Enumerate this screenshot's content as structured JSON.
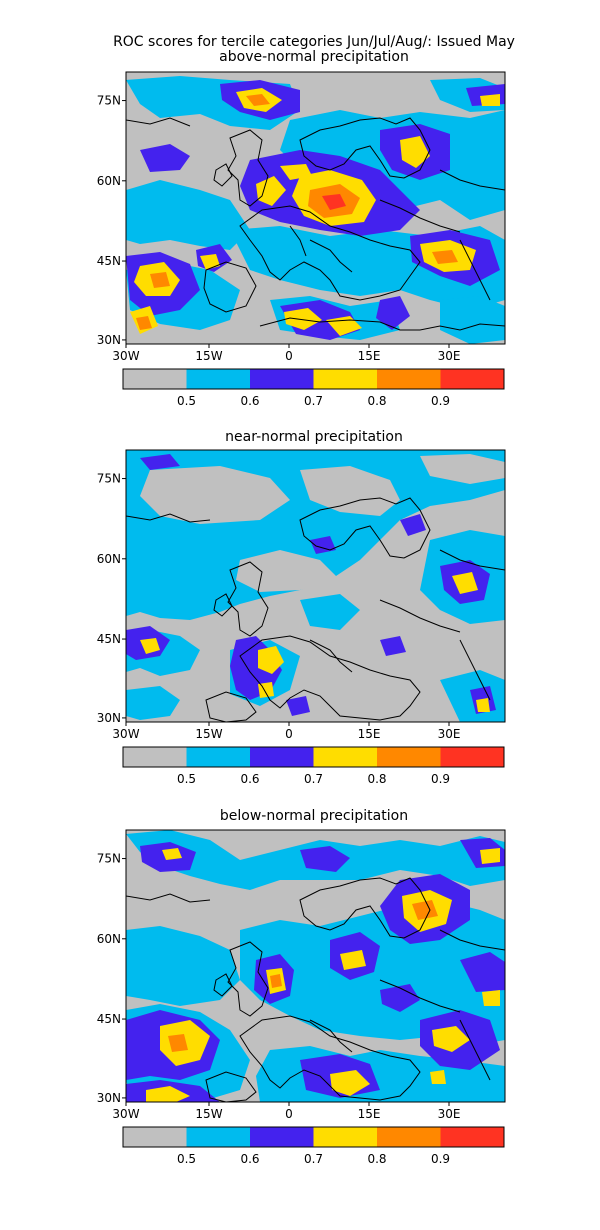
{
  "title_line1": "ROC scores for tercile categories Jun/Jul/Aug/: Issued May",
  "panels": [
    {
      "title": "above-normal precipitation"
    },
    {
      "title": "near-normal precipitation"
    },
    {
      "title": "below-normal precipitation"
    }
  ],
  "x_ticks": [
    "30W",
    "15W",
    "0",
    "15E",
    "30E"
  ],
  "y_ticks": [
    "75N",
    "60N",
    "45N",
    "30N"
  ],
  "colorbar": {
    "colors": [
      "#c0c0c0",
      "#00bbee",
      "#4422ee",
      "#ffdd00",
      "#ff8800",
      "#ff3322"
    ],
    "labels": [
      "0.5",
      "0.6",
      "0.7",
      "0.8",
      "0.9"
    ]
  },
  "palette": {
    "gray": "#c0c0c0",
    "cyan": "#00bbee",
    "blue": "#4422ee",
    "yellow": "#ffdd00",
    "orange": "#ff8800",
    "red": "#ff3322"
  }
}
